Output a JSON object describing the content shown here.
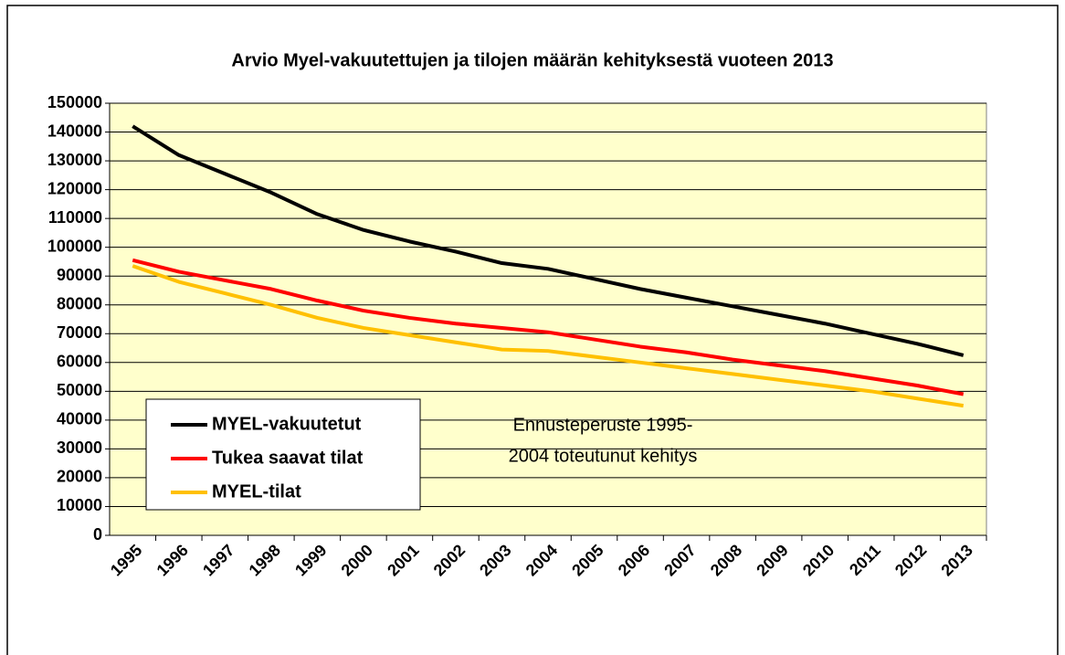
{
  "chart_data": {
    "type": "line",
    "title": "Arvio Myel-vakuutettujen ja tilojen määrän kehityksestä vuoteen 2013",
    "categories": [
      "1995",
      "1996",
      "1997",
      "1998",
      "1999",
      "2000",
      "2001",
      "2002",
      "2003",
      "2004",
      "2005",
      "2006",
      "2007",
      "2008",
      "2009",
      "2010",
      "2011",
      "2012",
      "2013"
    ],
    "series": [
      {
        "name": "MYEL-vakuutetut",
        "color": "#000000",
        "values": [
          142000,
          132000,
          125500,
          119000,
          111500,
          106000,
          102000,
          98500,
          94500,
          92500,
          89000,
          85500,
          82500,
          79500,
          76500,
          73500,
          70000,
          66500,
          62500
        ]
      },
      {
        "name": "Tukea saavat tilat",
        "color": "#ff0000",
        "values": [
          95500,
          91500,
          88500,
          85500,
          81500,
          78000,
          75500,
          73500,
          72000,
          70500,
          68000,
          65500,
          63500,
          61000,
          59000,
          57000,
          54500,
          52000,
          49000
        ]
      },
      {
        "name": "MYEL-tilat",
        "color": "#ffc000",
        "values": [
          93500,
          88000,
          84000,
          80000,
          75500,
          72000,
          69500,
          67000,
          64500,
          64000,
          62000,
          60000,
          58000,
          56000,
          54000,
          52000,
          50000,
          47500,
          45000
        ]
      }
    ],
    "annotation": [
      "Ennusteperuste 1995-",
      "2004 toteutunut kehitys"
    ],
    "ylim": [
      0,
      150000
    ],
    "yticks": [
      0,
      10000,
      20000,
      30000,
      40000,
      50000,
      60000,
      70000,
      80000,
      90000,
      100000,
      110000,
      120000,
      130000,
      140000,
      150000
    ],
    "grid": true,
    "legend": "lower-left",
    "plot_background": "#ffffcc"
  }
}
